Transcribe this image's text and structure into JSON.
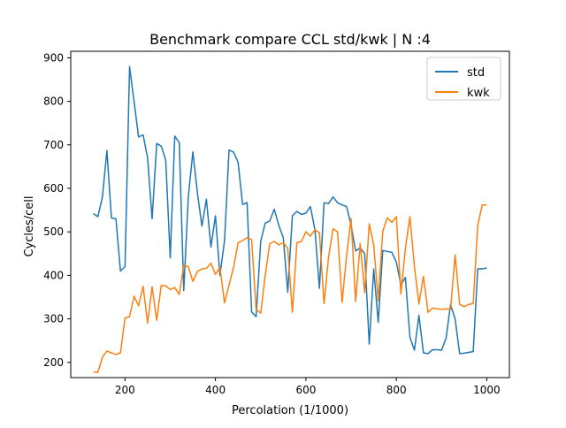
{
  "chart_data": {
    "type": "line",
    "title": "Benchmark compare CCL std/kwk | N :4",
    "xlabel": "Percolation (1/1000)",
    "ylabel": "Cycles/cell",
    "xlim": [
      80,
      1050
    ],
    "ylim": [
      165,
      915
    ],
    "xticks": [
      200,
      400,
      600,
      800,
      1000
    ],
    "yticks": [
      200,
      300,
      400,
      500,
      600,
      700,
      800,
      900
    ],
    "legend_position": "top-right",
    "grid": false,
    "series": [
      {
        "name": "std",
        "color": "#1f77b4",
        "x": [
          130,
          140,
          150,
          160,
          170,
          180,
          190,
          200,
          210,
          220,
          230,
          240,
          250,
          260,
          270,
          280,
          290,
          300,
          310,
          320,
          330,
          340,
          350,
          360,
          370,
          380,
          390,
          400,
          410,
          420,
          430,
          440,
          450,
          460,
          470,
          480,
          490,
          500,
          510,
          520,
          530,
          540,
          550,
          560,
          570,
          580,
          590,
          600,
          610,
          620,
          630,
          640,
          650,
          660,
          670,
          680,
          690,
          700,
          710,
          720,
          730,
          740,
          750,
          760,
          770,
          780,
          790,
          800,
          810,
          820,
          830,
          840,
          850,
          860,
          870,
          880,
          890,
          900,
          910,
          920,
          930,
          940,
          950,
          960,
          970,
          980,
          990,
          1000
        ],
        "y": [
          542,
          535,
          580,
          687,
          532,
          530,
          410,
          420,
          880,
          800,
          718,
          723,
          670,
          530,
          703,
          697,
          665,
          440,
          720,
          705,
          365,
          580,
          684,
          590,
          513,
          575,
          465,
          537,
          400,
          480,
          688,
          683,
          660,
          563,
          567,
          316,
          305,
          478,
          520,
          525,
          552,
          515,
          487,
          361,
          537,
          547,
          540,
          543,
          558,
          505,
          370,
          567,
          565,
          580,
          567,
          562,
          558,
          515,
          456,
          463,
          450,
          242,
          415,
          292,
          457,
          455,
          453,
          430,
          378,
          395,
          258,
          228,
          308,
          222,
          220,
          229,
          229,
          228,
          256,
          333,
          300,
          220,
          221,
          223,
          225,
          415,
          415,
          417
        ]
      },
      {
        "name": "kwk",
        "color": "#ff7f0e",
        "x": [
          130,
          140,
          150,
          160,
          170,
          180,
          190,
          200,
          210,
          220,
          230,
          240,
          250,
          260,
          270,
          280,
          290,
          300,
          310,
          320,
          330,
          340,
          350,
          360,
          370,
          380,
          390,
          400,
          410,
          420,
          430,
          440,
          450,
          460,
          470,
          480,
          490,
          500,
          510,
          520,
          530,
          540,
          550,
          560,
          570,
          580,
          590,
          600,
          610,
          620,
          630,
          640,
          650,
          660,
          670,
          680,
          690,
          700,
          710,
          720,
          730,
          740,
          750,
          760,
          770,
          780,
          790,
          800,
          810,
          820,
          830,
          840,
          850,
          860,
          870,
          880,
          890,
          900,
          910,
          920,
          930,
          940,
          950,
          960,
          970,
          980,
          990,
          1000
        ],
        "y": [
          178,
          177,
          212,
          226,
          222,
          218,
          222,
          302,
          305,
          352,
          330,
          375,
          290,
          374,
          297,
          377,
          376,
          367,
          372,
          356,
          423,
          420,
          386,
          409,
          415,
          416,
          428,
          402,
          418,
          337,
          378,
          418,
          475,
          480,
          487,
          482,
          322,
          313,
          400,
          473,
          478,
          470,
          475,
          462,
          315,
          475,
          478,
          500,
          490,
          505,
          498,
          335,
          442,
          507,
          500,
          338,
          445,
          530,
          340,
          473,
          360,
          518,
          470,
          342,
          502,
          532,
          522,
          535,
          357,
          462,
          535,
          420,
          334,
          398,
          315,
          325,
          323,
          322,
          323,
          322,
          447,
          333,
          328,
          333,
          335,
          515,
          562,
          562
        ]
      }
    ]
  }
}
